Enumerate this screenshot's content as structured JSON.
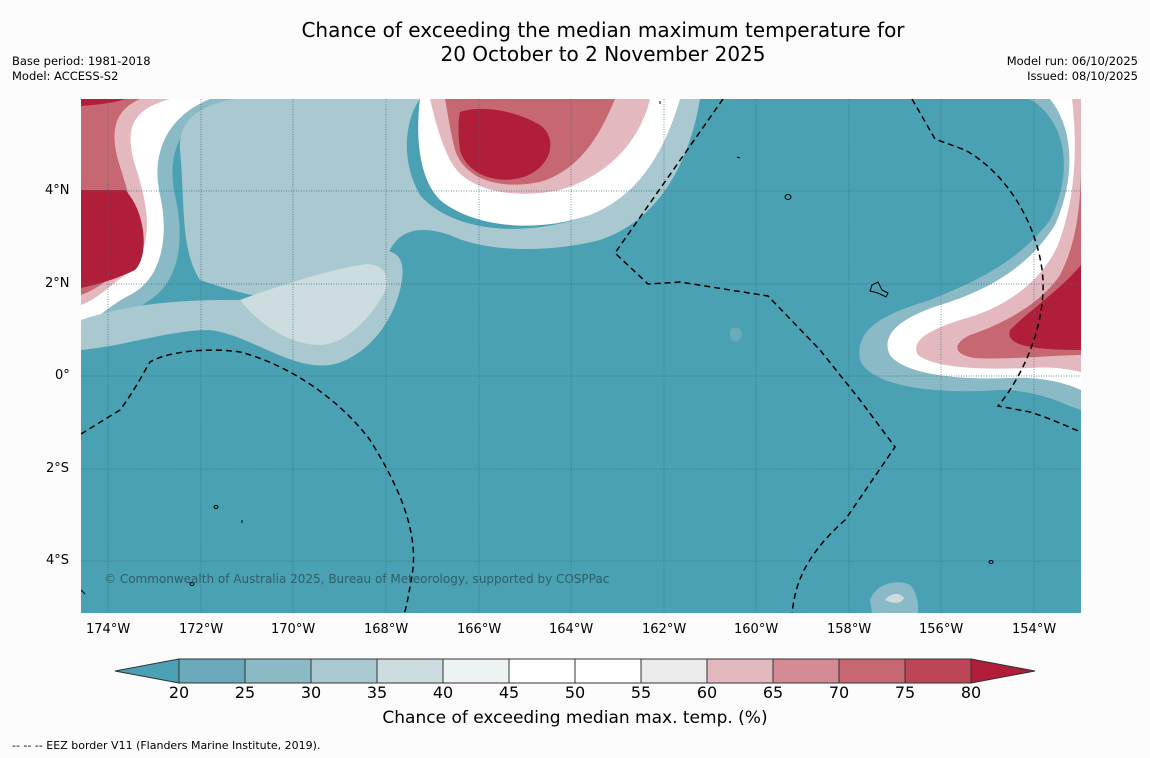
{
  "title_line1": "Chance of exceeding the median maximum temperature for",
  "title_line2": "20 October to 2 November 2025",
  "meta_left": [
    "Base period: 1981-2018",
    "Model: ACCESS-S2"
  ],
  "meta_right": [
    "Model run: 06/10/2025",
    "Issued: 08/10/2025"
  ],
  "copyright": "© Commonwealth of Australia 2025, Bureau of Meteorology, supported by COSPPac",
  "lon_ticks": [
    "174°W",
    "172°W",
    "170°W",
    "168°W",
    "166°W",
    "164°W",
    "162°W",
    "160°W",
    "158°W",
    "156°W",
    "154°W"
  ],
  "lat_ticks": [
    "4°N",
    "2°N",
    "0°",
    "2°S",
    "4°S"
  ],
  "colorbar": {
    "ticks": [
      "20",
      "25",
      "30",
      "35",
      "40",
      "45",
      "50",
      "55",
      "60",
      "65",
      "70",
      "75",
      "80"
    ],
    "colors": [
      "#4aa1b3",
      "#6baabb",
      "#8abac6",
      "#aac8cf",
      "#cddcdf",
      "#edf2f3",
      "#ffffff",
      "#ffffff",
      "#ecebeb",
      "#e3b9bf",
      "#d58b95",
      "#c76771",
      "#bd4656",
      "#b01e3a"
    ],
    "label": "Chance of exceeding median max. temp. (%)"
  },
  "footnote": "--  --  -- EEZ border V11 (Flanders Marine Institute, 2019)."
}
